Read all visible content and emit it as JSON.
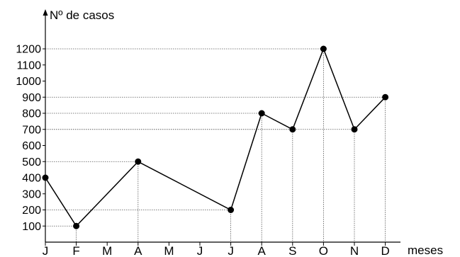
{
  "chart_data": {
    "type": "line",
    "ylabel": "Nº de casos",
    "xlabel": "meses",
    "categories": [
      "J",
      "F",
      "M",
      "A",
      "M",
      "J",
      "J",
      "A",
      "S",
      "O",
      "N",
      "D"
    ],
    "values": [
      400,
      100,
      null,
      500,
      null,
      null,
      200,
      800,
      700,
      1200,
      700,
      900
    ],
    "ylim": [
      0,
      1300
    ],
    "yticks": [
      100,
      200,
      300,
      400,
      500,
      600,
      700,
      800,
      900,
      1000,
      1100,
      1200
    ],
    "guide_lines": "dotted",
    "colors": {
      "line": "#000000",
      "marker": "#000000",
      "guide": "#555555"
    }
  }
}
